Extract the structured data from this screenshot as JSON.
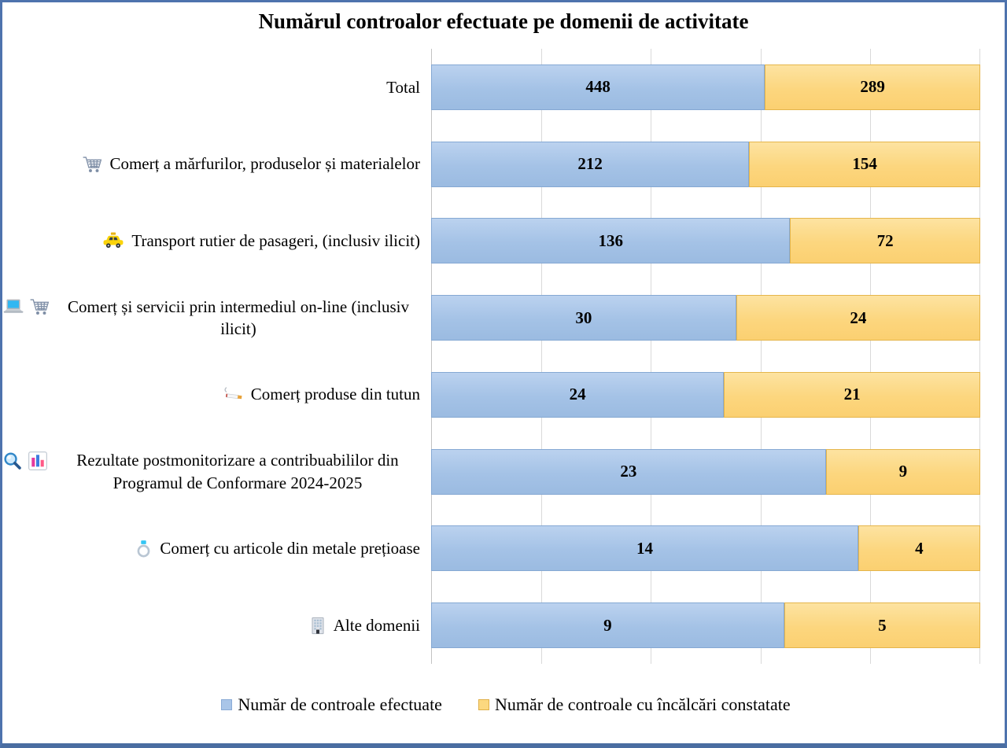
{
  "title": "Numărul controalor efectuate pe domenii de activitate",
  "chart_data": {
    "type": "bar",
    "subtype": "100-percent-stacked-horizontal",
    "title": "Numărul controalor efectuate pe domenii de activitate",
    "legend_position": "bottom",
    "grid": "vertical gridlines at 0%, 20%, 40%, 60%, 80%, 100% of each row total",
    "value_axis": {
      "min": "0%",
      "max": "100%",
      "gridline_step": "20%",
      "tick_labels_visible": false
    },
    "categories": [
      "Total",
      "Comerț a mărfurilor, produselor și materialelor",
      "Transport rutier de pasageri, (inclusiv ilicit)",
      "Comerț și servicii prin intermediul on-line (inclusiv ilicit)",
      "Comerț produse din tutun",
      "Rezultate postmonitorizare a contribuabililor din Programul de Conformare 2024-2025",
      "Comerț cu articole din metale prețioase",
      "Alte domenii"
    ],
    "series": [
      {
        "name": "Număr de controale efectuate",
        "color": "#a6c3e7",
        "border_color": "#85a8d3",
        "values": [
          448,
          212,
          136,
          30,
          24,
          23,
          14,
          9
        ]
      },
      {
        "name": "Număr de controale cu încălcări constatate",
        "color": "#fcd67e",
        "border_color": "#e5b54b",
        "values": [
          289,
          154,
          72,
          24,
          21,
          9,
          4,
          5
        ]
      }
    ],
    "rows": [
      {
        "label": "Total",
        "icons": [],
        "efectuate": 448,
        "incalcari": 289
      },
      {
        "label": "Comerț a mărfurilor, produselor și materialelor",
        "icons": [
          "shopping-cart"
        ],
        "efectuate": 212,
        "incalcari": 154
      },
      {
        "label": "Transport rutier de pasageri, (inclusiv ilicit)",
        "icons": [
          "taxi"
        ],
        "efectuate": 136,
        "incalcari": 72
      },
      {
        "label": "Comerț și servicii prin intermediul on-line (inclusiv ilicit)",
        "icons": [
          "laptop",
          "shopping-cart"
        ],
        "efectuate": 30,
        "incalcari": 24
      },
      {
        "label": "Comerț produse din tutun",
        "icons": [
          "cigarette"
        ],
        "efectuate": 24,
        "incalcari": 21
      },
      {
        "label": "Rezultate postmonitorizare a contribuabililor din Programul de Conformare 2024-2025",
        "icons": [
          "magnifier",
          "bar-chart"
        ],
        "efectuate": 23,
        "incalcari": 9
      },
      {
        "label": "Comerț cu articole din metale prețioase",
        "icons": [
          "ring"
        ],
        "efectuate": 14,
        "incalcari": 4
      },
      {
        "label": "Alte domenii",
        "icons": [
          "office-building"
        ],
        "efectuate": 9,
        "incalcari": 5
      }
    ]
  },
  "legend": {
    "items": [
      {
        "label": "Număr de controale efectuate",
        "color": "#a9c5e8"
      },
      {
        "label": "Număr de controale cu încălcări constatate",
        "color": "#fcd87f"
      }
    ]
  },
  "colors": {
    "frame_border": "#4e73ad",
    "gridline": "#d9d9d9",
    "bar_blue": "#a6c3e7",
    "bar_yellow": "#fcd67e",
    "text": "#000000"
  }
}
